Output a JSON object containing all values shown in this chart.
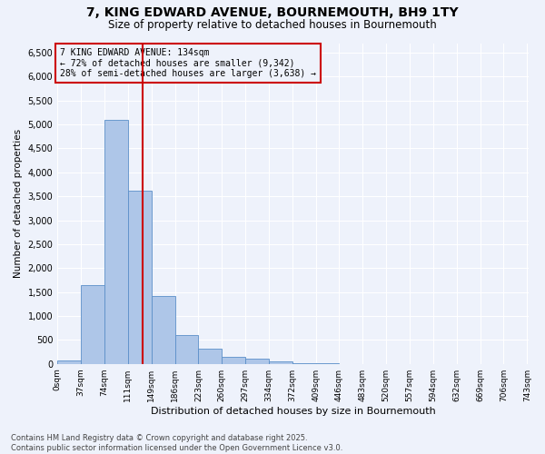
{
  "title_line1": "7, KING EDWARD AVENUE, BOURNEMOUTH, BH9 1TY",
  "title_line2": "Size of property relative to detached houses in Bournemouth",
  "xlabel": "Distribution of detached houses by size in Bournemouth",
  "ylabel": "Number of detached properties",
  "bin_labels": [
    "0sqm",
    "37sqm",
    "74sqm",
    "111sqm",
    "149sqm",
    "186sqm",
    "223sqm",
    "260sqm",
    "297sqm",
    "334sqm",
    "372sqm",
    "409sqm",
    "446sqm",
    "483sqm",
    "520sqm",
    "557sqm",
    "594sqm",
    "632sqm",
    "669sqm",
    "706sqm",
    "743sqm"
  ],
  "bar_values": [
    70,
    1650,
    5100,
    3620,
    1420,
    600,
    320,
    155,
    115,
    50,
    10,
    5,
    0,
    0,
    0,
    0,
    0,
    0,
    0,
    0
  ],
  "bar_color": "#aec6e8",
  "bar_edge_color": "#5b8fc9",
  "property_line_x": 134,
  "vline_color": "#cc0000",
  "annotation_text": "7 KING EDWARD AVENUE: 134sqm\n← 72% of detached houses are smaller (9,342)\n28% of semi-detached houses are larger (3,638) →",
  "annotation_box_color": "#cc0000",
  "ylim": [
    0,
    6700
  ],
  "yticks": [
    0,
    500,
    1000,
    1500,
    2000,
    2500,
    3000,
    3500,
    4000,
    4500,
    5000,
    5500,
    6000,
    6500
  ],
  "footer_line1": "Contains HM Land Registry data © Crown copyright and database right 2025.",
  "footer_line2": "Contains public sector information licensed under the Open Government Licence v3.0.",
  "bg_color": "#eef2fb",
  "grid_color": "#ffffff",
  "bin_width": 37
}
